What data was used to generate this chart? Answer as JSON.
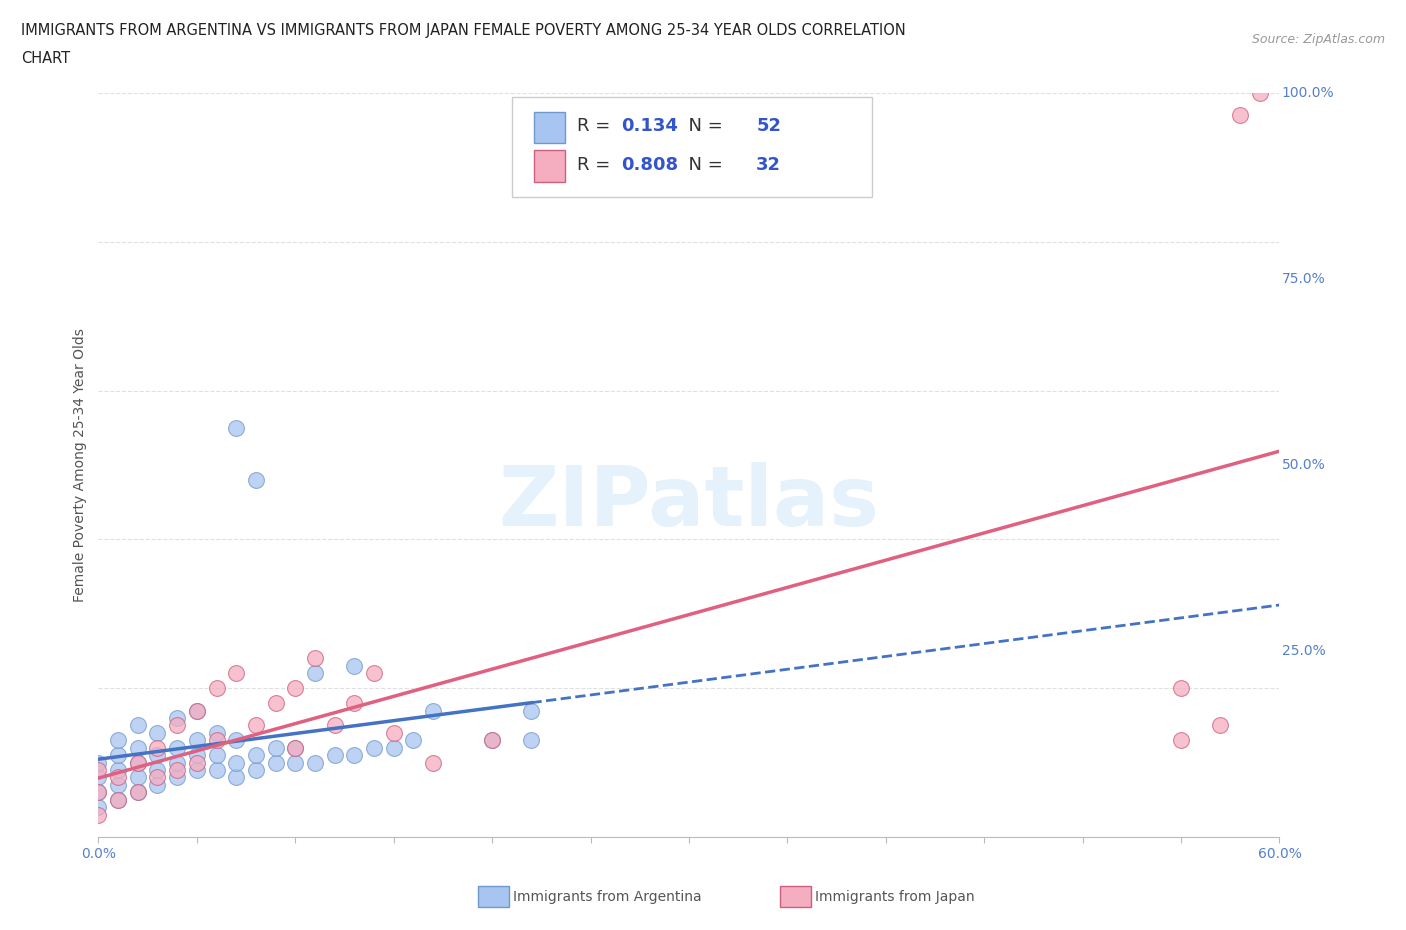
{
  "title_line1": "IMMIGRANTS FROM ARGENTINA VS IMMIGRANTS FROM JAPAN FEMALE POVERTY AMONG 25-34 YEAR OLDS CORRELATION",
  "title_line2": "CHART",
  "source": "Source: ZipAtlas.com",
  "ylabel": "Female Poverty Among 25-34 Year Olds",
  "xlim": [
    0.0,
    0.6
  ],
  "ylim": [
    0.0,
    1.0
  ],
  "R_argentina": 0.134,
  "N_argentina": 52,
  "R_japan": 0.808,
  "N_japan": 32,
  "color_argentina": "#a8c4f0",
  "color_japan": "#f5adc0",
  "color_argentina_line": "#4472c4",
  "color_japan_line": "#e06080",
  "argentina_x": [
    0.0,
    0.0,
    0.0,
    0.0,
    0.01,
    0.01,
    0.01,
    0.01,
    0.01,
    0.02,
    0.02,
    0.02,
    0.02,
    0.02,
    0.03,
    0.03,
    0.03,
    0.03,
    0.04,
    0.04,
    0.04,
    0.04,
    0.05,
    0.05,
    0.05,
    0.05,
    0.06,
    0.06,
    0.06,
    0.07,
    0.07,
    0.07,
    0.07,
    0.08,
    0.08,
    0.08,
    0.09,
    0.09,
    0.1,
    0.1,
    0.11,
    0.11,
    0.12,
    0.13,
    0.13,
    0.14,
    0.15,
    0.16,
    0.17,
    0.2,
    0.22,
    0.22
  ],
  "argentina_y": [
    0.04,
    0.06,
    0.08,
    0.1,
    0.05,
    0.07,
    0.09,
    0.11,
    0.13,
    0.06,
    0.08,
    0.1,
    0.12,
    0.15,
    0.07,
    0.09,
    0.11,
    0.14,
    0.08,
    0.1,
    0.12,
    0.16,
    0.09,
    0.11,
    0.13,
    0.17,
    0.09,
    0.11,
    0.14,
    0.08,
    0.1,
    0.13,
    0.55,
    0.09,
    0.11,
    0.48,
    0.1,
    0.12,
    0.1,
    0.12,
    0.1,
    0.22,
    0.11,
    0.11,
    0.23,
    0.12,
    0.12,
    0.13,
    0.17,
    0.13,
    0.13,
    0.17
  ],
  "japan_x": [
    0.0,
    0.0,
    0.0,
    0.01,
    0.01,
    0.02,
    0.02,
    0.03,
    0.03,
    0.04,
    0.04,
    0.05,
    0.05,
    0.06,
    0.06,
    0.07,
    0.08,
    0.09,
    0.1,
    0.1,
    0.11,
    0.12,
    0.13,
    0.14,
    0.15,
    0.17,
    0.2,
    0.55,
    0.55,
    0.57,
    0.58,
    0.59
  ],
  "japan_y": [
    0.03,
    0.06,
    0.09,
    0.05,
    0.08,
    0.06,
    0.1,
    0.08,
    0.12,
    0.09,
    0.15,
    0.1,
    0.17,
    0.13,
    0.2,
    0.22,
    0.15,
    0.18,
    0.12,
    0.2,
    0.24,
    0.15,
    0.18,
    0.22,
    0.14,
    0.1,
    0.13,
    0.13,
    0.2,
    0.15,
    0.97,
    1.0
  ],
  "grid_color": "#dddddd",
  "background_color": "#ffffff",
  "legend_label_argentina": "Immigrants from Argentina",
  "legend_label_japan": "Immigrants from Japan",
  "watermark_text": "ZIPatlas"
}
